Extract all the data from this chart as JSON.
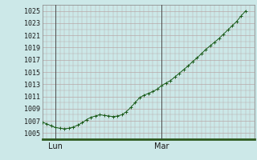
{
  "background_color": "#cce8e8",
  "plot_bg_color": "#cce8e8",
  "line_color": "#1a5c1a",
  "marker_color": "#1a5c1a",
  "grid_color": "#b8a8a8",
  "ytick_labels": [
    1005,
    1007,
    1009,
    1011,
    1013,
    1015,
    1017,
    1019,
    1021,
    1023,
    1025
  ],
  "ytick_minor_step": 1,
  "ylim": [
    1004.0,
    1026.0
  ],
  "xtick_labels": [
    "Lun",
    "Mar"
  ],
  "xtick_positions": [
    3,
    27
  ],
  "xlim": [
    0,
    48
  ],
  "vline_positions": [
    3,
    27
  ],
  "bottom_bar_color": "#2d5a1e",
  "data_y": [
    1006.8,
    1006.5,
    1006.2,
    1005.9,
    1005.8,
    1005.7,
    1005.8,
    1006.0,
    1006.3,
    1006.7,
    1007.2,
    1007.6,
    1007.8,
    1008.0,
    1007.9,
    1007.8,
    1007.7,
    1007.8,
    1008.0,
    1008.5,
    1009.2,
    1010.0,
    1010.8,
    1011.2,
    1011.5,
    1011.8,
    1012.2,
    1012.8,
    1013.2,
    1013.6,
    1014.2,
    1014.8,
    1015.4,
    1016.0,
    1016.7,
    1017.3,
    1018.0,
    1018.7,
    1019.3,
    1019.9,
    1020.5,
    1021.2,
    1021.9,
    1022.6,
    1023.3,
    1024.2,
    1025.0
  ]
}
